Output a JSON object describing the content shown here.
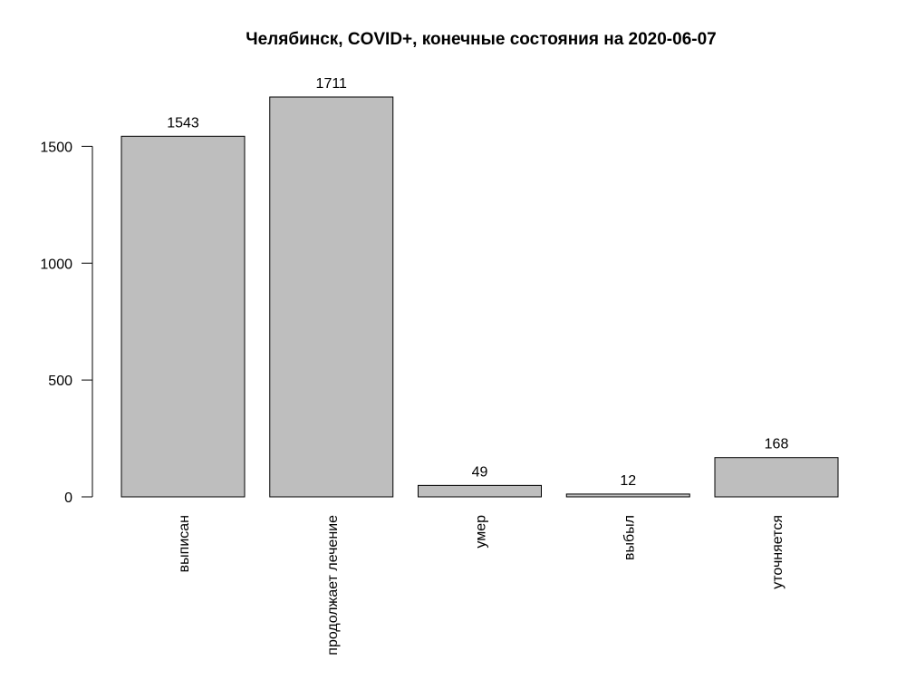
{
  "chart_data": {
    "type": "bar",
    "title": "Челябинск, COVID+, конечные состояния на 2020-06-07",
    "categories": [
      "выписан",
      "продолжает лечение",
      "умер",
      "выбыл",
      "уточняется"
    ],
    "values": [
      1543,
      1711,
      49,
      12,
      168
    ],
    "data_labels": [
      "1543",
      "1711",
      "49",
      "12",
      "168"
    ],
    "yticks": [
      0,
      500,
      1000,
      1500
    ],
    "ytick_labels": [
      "0",
      "500",
      "1000",
      "1500"
    ],
    "xlabel": "",
    "ylabel": "",
    "ylim": [
      0,
      1711
    ],
    "grid": false,
    "colors": {
      "bar_fill": "#bebebe",
      "bar_stroke": "#000000"
    }
  }
}
